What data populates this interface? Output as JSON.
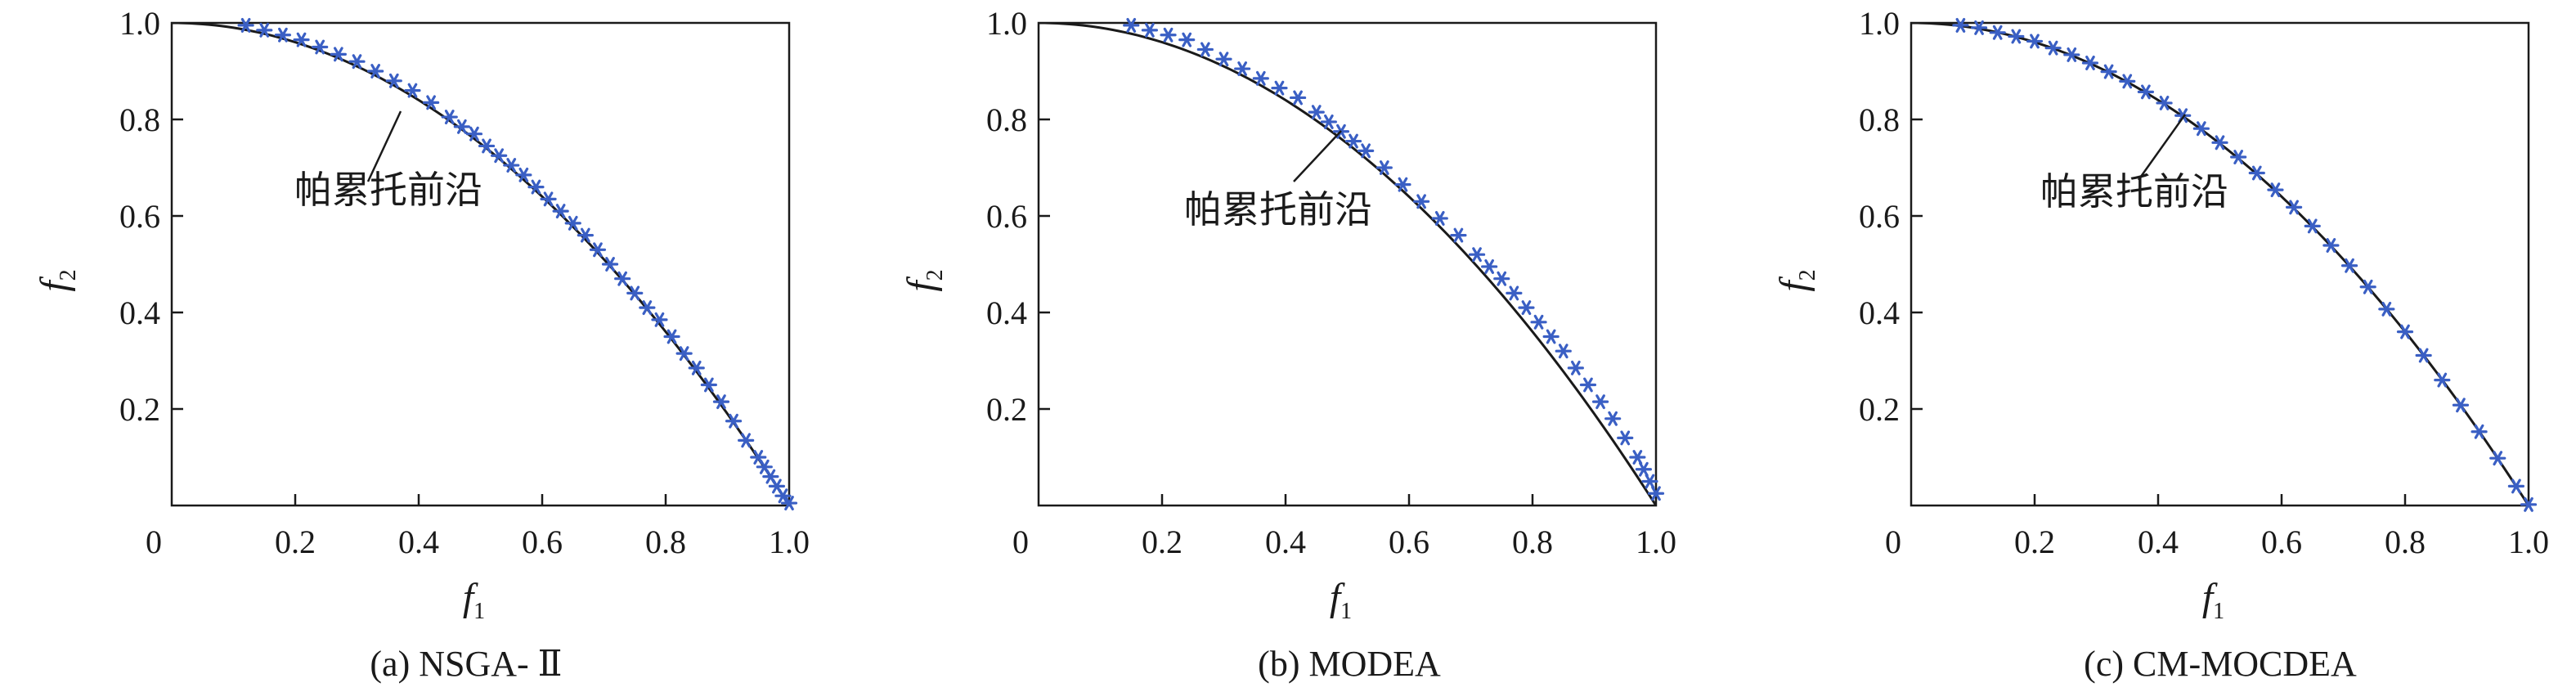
{
  "chart_data": [
    {
      "type": "scatter",
      "caption": "(a) NSGA- Ⅱ",
      "xlabel": "f",
      "xlabel_sub": "1",
      "ylabel": "f",
      "ylabel_sub": "2",
      "xlim": [
        0,
        1.0
      ],
      "ylim": [
        0,
        1.0
      ],
      "x_ticks": [
        "0",
        "0.2",
        "0.4",
        "0.6",
        "0.8",
        "1.0"
      ],
      "y_ticks": [
        "0.2",
        "0.4",
        "0.6",
        "0.8",
        "1.0"
      ],
      "annotation": "帕累托前沿",
      "curve": "Pareto front f2 = 1 - f1^2",
      "marker_color": "#3a5fc4",
      "curve_color": "#1a1a1a",
      "points": [
        [
          0.12,
          0.995
        ],
        [
          0.15,
          0.985
        ],
        [
          0.18,
          0.975
        ],
        [
          0.21,
          0.965
        ],
        [
          0.24,
          0.95
        ],
        [
          0.27,
          0.935
        ],
        [
          0.3,
          0.92
        ],
        [
          0.33,
          0.9
        ],
        [
          0.36,
          0.88
        ],
        [
          0.39,
          0.86
        ],
        [
          0.42,
          0.835
        ],
        [
          0.45,
          0.805
        ],
        [
          0.47,
          0.785
        ],
        [
          0.49,
          0.77
        ],
        [
          0.51,
          0.745
        ],
        [
          0.53,
          0.725
        ],
        [
          0.55,
          0.705
        ],
        [
          0.57,
          0.685
        ],
        [
          0.59,
          0.66
        ],
        [
          0.61,
          0.635
        ],
        [
          0.63,
          0.61
        ],
        [
          0.65,
          0.585
        ],
        [
          0.67,
          0.56
        ],
        [
          0.69,
          0.53
        ],
        [
          0.71,
          0.5
        ],
        [
          0.73,
          0.47
        ],
        [
          0.75,
          0.44
        ],
        [
          0.77,
          0.41
        ],
        [
          0.79,
          0.385
        ],
        [
          0.81,
          0.35
        ],
        [
          0.83,
          0.315
        ],
        [
          0.85,
          0.285
        ],
        [
          0.87,
          0.25
        ],
        [
          0.89,
          0.215
        ],
        [
          0.91,
          0.175
        ],
        [
          0.93,
          0.135
        ],
        [
          0.95,
          0.1
        ],
        [
          0.96,
          0.08
        ],
        [
          0.97,
          0.06
        ],
        [
          0.98,
          0.04
        ],
        [
          0.99,
          0.02
        ],
        [
          1.0,
          0.005
        ]
      ]
    },
    {
      "type": "scatter",
      "caption": "(b) MODEA",
      "xlabel": "f",
      "xlabel_sub": "1",
      "ylabel": "f",
      "ylabel_sub": "2",
      "xlim": [
        0,
        1.0
      ],
      "ylim": [
        0,
        1.0
      ],
      "x_ticks": [
        "0",
        "0.2",
        "0.4",
        "0.6",
        "0.8",
        "1.0"
      ],
      "y_ticks": [
        "0.2",
        "0.4",
        "0.6",
        "0.8",
        "1.0"
      ],
      "annotation": "帕累托前沿",
      "curve": "Pareto front f2 = 1 - f1^2",
      "marker_color": "#3a5fc4",
      "curve_color": "#1a1a1a",
      "points": [
        [
          0.15,
          0.995
        ],
        [
          0.18,
          0.985
        ],
        [
          0.21,
          0.975
        ],
        [
          0.24,
          0.965
        ],
        [
          0.27,
          0.945
        ],
        [
          0.3,
          0.925
        ],
        [
          0.33,
          0.905
        ],
        [
          0.36,
          0.885
        ],
        [
          0.39,
          0.865
        ],
        [
          0.42,
          0.845
        ],
        [
          0.45,
          0.815
        ],
        [
          0.47,
          0.795
        ],
        [
          0.49,
          0.775
        ],
        [
          0.51,
          0.755
        ],
        [
          0.53,
          0.735
        ],
        [
          0.56,
          0.7
        ],
        [
          0.59,
          0.665
        ],
        [
          0.62,
          0.63
        ],
        [
          0.65,
          0.595
        ],
        [
          0.68,
          0.56
        ],
        [
          0.71,
          0.52
        ],
        [
          0.73,
          0.495
        ],
        [
          0.75,
          0.47
        ],
        [
          0.77,
          0.44
        ],
        [
          0.79,
          0.41
        ],
        [
          0.81,
          0.38
        ],
        [
          0.83,
          0.35
        ],
        [
          0.85,
          0.32
        ],
        [
          0.87,
          0.285
        ],
        [
          0.89,
          0.25
        ],
        [
          0.91,
          0.215
        ],
        [
          0.93,
          0.18
        ],
        [
          0.95,
          0.14
        ],
        [
          0.97,
          0.1
        ],
        [
          0.98,
          0.075
        ],
        [
          0.99,
          0.05
        ],
        [
          1.0,
          0.025
        ]
      ]
    },
    {
      "type": "scatter",
      "caption": "(c) CM-MOCDEA",
      "xlabel": "f",
      "xlabel_sub": "1",
      "ylabel": "f",
      "ylabel_sub": "2",
      "xlim": [
        0,
        1.0
      ],
      "ylim": [
        0,
        1.0
      ],
      "x_ticks": [
        "0",
        "0.2",
        "0.4",
        "0.6",
        "0.8",
        "1.0"
      ],
      "y_ticks": [
        "0.2",
        "0.4",
        "0.6",
        "0.8",
        "1.0"
      ],
      "annotation": "帕累托前沿",
      "curve": "Pareto front f2 = 1 - f1^2",
      "marker_color": "#3a5fc4",
      "curve_color": "#1a1a1a",
      "points": [
        [
          0.08,
          0.995
        ],
        [
          0.11,
          0.99
        ],
        [
          0.14,
          0.98
        ],
        [
          0.17,
          0.972
        ],
        [
          0.2,
          0.962
        ],
        [
          0.23,
          0.948
        ],
        [
          0.26,
          0.934
        ],
        [
          0.29,
          0.917
        ],
        [
          0.32,
          0.899
        ],
        [
          0.35,
          0.879
        ],
        [
          0.38,
          0.857
        ],
        [
          0.41,
          0.834
        ],
        [
          0.44,
          0.808
        ],
        [
          0.47,
          0.781
        ],
        [
          0.5,
          0.752
        ],
        [
          0.53,
          0.722
        ],
        [
          0.56,
          0.689
        ],
        [
          0.59,
          0.654
        ],
        [
          0.62,
          0.618
        ],
        [
          0.65,
          0.579
        ],
        [
          0.68,
          0.539
        ],
        [
          0.71,
          0.497
        ],
        [
          0.74,
          0.453
        ],
        [
          0.77,
          0.407
        ],
        [
          0.8,
          0.36
        ],
        [
          0.83,
          0.311
        ],
        [
          0.86,
          0.26
        ],
        [
          0.89,
          0.208
        ],
        [
          0.92,
          0.153
        ],
        [
          0.95,
          0.098
        ],
        [
          0.98,
          0.04
        ],
        [
          1.0,
          0.002
        ]
      ]
    }
  ]
}
